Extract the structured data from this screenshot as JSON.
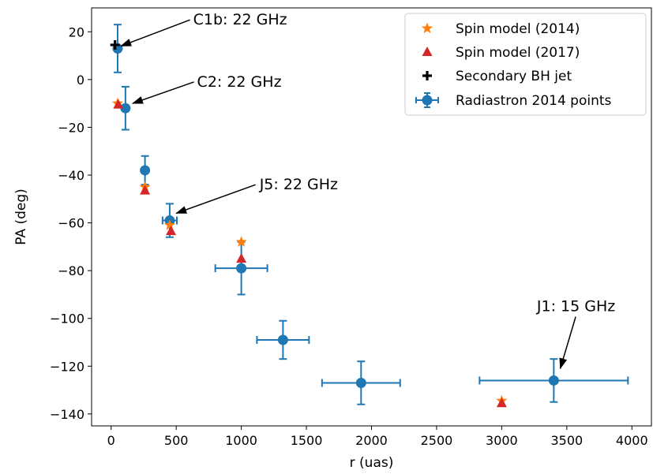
{
  "chart_data": {
    "type": "scatter",
    "xlabel": "r (uas)",
    "ylabel": "PA (deg)",
    "xlim": [
      -150,
      4150
    ],
    "ylim": [
      -145,
      30
    ],
    "xticks": [
      0,
      500,
      1000,
      1500,
      2000,
      2500,
      3000,
      3500,
      4000
    ],
    "yticks": [
      20,
      0,
      -20,
      -40,
      -60,
      -80,
      -100,
      -120,
      -140
    ],
    "grid": false,
    "legend_position": "top-right",
    "series": [
      {
        "name": "Spin model (2014)",
        "marker": "star",
        "color": "#ff7f0e",
        "points": [
          {
            "x": 50,
            "y": -10
          },
          {
            "x": 260,
            "y": -45
          },
          {
            "x": 450,
            "y": -61
          },
          {
            "x": 1000,
            "y": -68
          },
          {
            "x": 3000,
            "y": -134.5
          }
        ]
      },
      {
        "name": "Spin model (2017)",
        "marker": "triangle",
        "color": "#d62728",
        "points": [
          {
            "x": 55,
            "y": -10.5
          },
          {
            "x": 260,
            "y": -46.5
          },
          {
            "x": 460,
            "y": -63.5
          },
          {
            "x": 1000,
            "y": -75
          },
          {
            "x": 3000,
            "y": -135.5
          }
        ]
      },
      {
        "name": "Secondary BH jet",
        "marker": "plus",
        "color": "#000000",
        "points": [
          {
            "x": 30,
            "y": 14.5
          }
        ]
      },
      {
        "name": "Radiastron 2014 points",
        "marker": "circle-errorbar",
        "color": "#1f77b4",
        "points": [
          {
            "x": 50,
            "y": 13,
            "xerr": 0,
            "yerr": 10
          },
          {
            "x": 110,
            "y": -12,
            "xerr": 0,
            "yerr": 9
          },
          {
            "x": 260,
            "y": -38,
            "xerr": 0,
            "yerr": 6
          },
          {
            "x": 450,
            "y": -59,
            "xerr": 55,
            "yerr": 7
          },
          {
            "x": 1000,
            "y": -79,
            "xerr": 200,
            "yerr": 11
          },
          {
            "x": 1320,
            "y": -109,
            "xerr": 200,
            "yerr": 8
          },
          {
            "x": 1920,
            "y": -127,
            "xerr": 300,
            "yerr": 9
          },
          {
            "x": 3400,
            "y": -126,
            "xerr": 570,
            "yerr": 9
          }
        ]
      }
    ],
    "annotations": [
      {
        "text": "C1b: 22 GHz",
        "text_x": 630,
        "text_y": 23,
        "arrow_to": [
          75,
          14
        ]
      },
      {
        "text": "C2: 22 GHz",
        "text_x": 660,
        "text_y": -3,
        "arrow_to": [
          165,
          -10
        ]
      },
      {
        "text": "J5: 22 GHz",
        "text_x": 1140,
        "text_y": -46,
        "arrow_to": [
          500,
          -56
        ]
      },
      {
        "text": "J1: 15 GHz",
        "text_x": 3270,
        "text_y": -97,
        "arrow_to": [
          3450,
          -121
        ]
      }
    ]
  }
}
